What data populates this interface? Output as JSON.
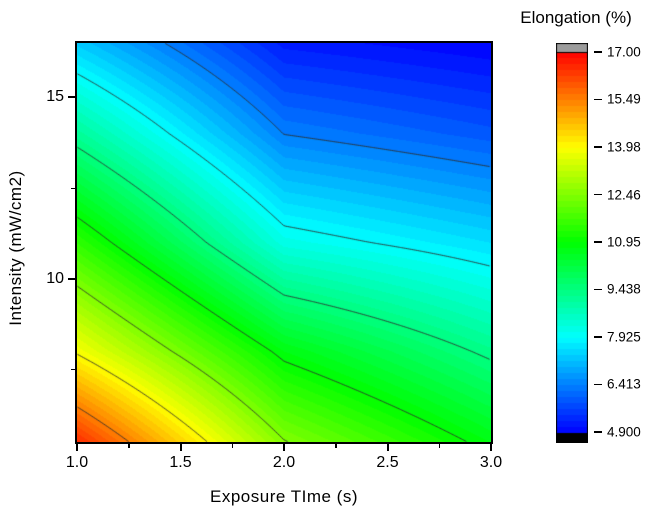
{
  "chart_data": {
    "type": "heatmap",
    "subtype": "filled_contour_plot",
    "colorbar_title": "Elongation (%)",
    "xlabel": "Exposure TIme (s)",
    "ylabel": "Intensity (mW/cm2)",
    "xlim": [
      1.0,
      3.0
    ],
    "ylim": [
      5.5,
      16.5
    ],
    "zlim": [
      4.9,
      17.0
    ],
    "x": [
      1.0,
      2.0,
      3.0
    ],
    "y": [
      5.5,
      8.0,
      11.0,
      14.0,
      16.5
    ],
    "z": [
      [
        16.5,
        12.5,
        10.75
      ],
      [
        13.9,
        10.76,
        9.3
      ],
      [
        11.5,
        8.2,
        7.54
      ],
      [
        9.15,
        6.4,
        5.92
      ],
      [
        7.3,
        5.2,
        4.9
      ]
    ],
    "contour_levels": [
      6.413,
      7.925,
      9.438,
      10.95,
      12.46,
      13.98,
      15.49
    ],
    "x_major_ticks": [
      {
        "value": 1.0,
        "label": "1.0"
      },
      {
        "value": 1.5,
        "label": "1.5"
      },
      {
        "value": 2.0,
        "label": "2.0"
      },
      {
        "value": 2.5,
        "label": "2.5"
      },
      {
        "value": 3.0,
        "label": "3.0"
      }
    ],
    "x_minor_ticks": [
      1.25,
      1.75,
      2.25,
      2.75
    ],
    "y_major_ticks": [
      {
        "value": 15,
        "label": "15"
      },
      {
        "value": 10,
        "label": "10"
      }
    ],
    "y_minor_ticks": [
      12.5,
      7.5
    ],
    "colorbar": {
      "title": "Elongation (%)",
      "min": 4.9,
      "max": 17.0,
      "ticks": [
        {
          "value": 17.0,
          "label": "17.00"
        },
        {
          "value": 15.49,
          "label": "15.49"
        },
        {
          "value": 13.98,
          "label": "13.98"
        },
        {
          "value": 12.46,
          "label": "12.46"
        },
        {
          "value": 10.95,
          "label": "10.95"
        },
        {
          "value": 9.438,
          "label": "9.438"
        },
        {
          "value": 7.925,
          "label": "7.925"
        },
        {
          "value": 6.413,
          "label": "6.413"
        },
        {
          "value": 4.9,
          "label": "4.900"
        }
      ],
      "above_color": "#9c9c9c",
      "below_color": "#000000"
    },
    "style": {
      "background": "#ffffff",
      "frame_color": "#000000",
      "contour_line_color": "#2d2d2d",
      "colormap": "rainbow_blue_to_red",
      "color_steps": 64,
      "grid": false,
      "legend_position": "right"
    }
  }
}
